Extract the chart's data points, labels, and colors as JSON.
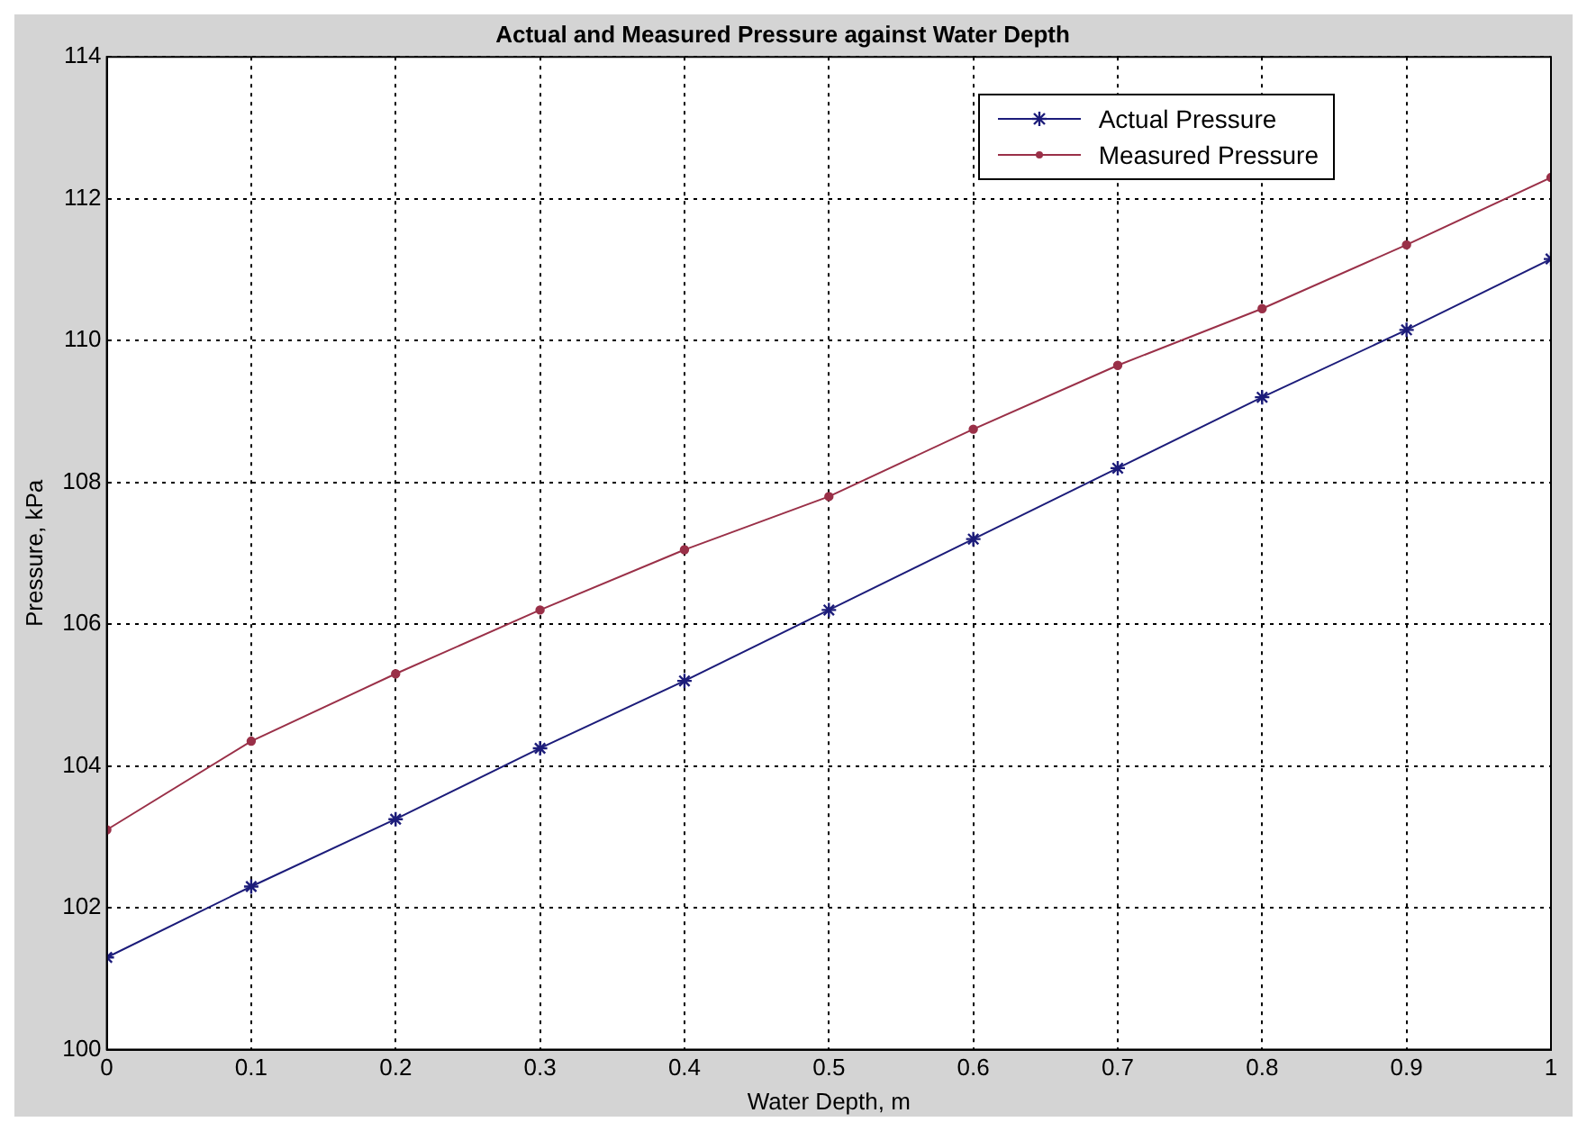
{
  "chart_data": {
    "type": "line",
    "title": "Actual and Measured Pressure against Water Depth",
    "xlabel": "Water Depth, m",
    "ylabel": "Pressure, kPa",
    "x": [
      0,
      0.1,
      0.2,
      0.3,
      0.4,
      0.5,
      0.6,
      0.7,
      0.8,
      0.9,
      1
    ],
    "series": [
      {
        "name": "Actual Pressure",
        "color": "#1c1c7a",
        "marker": "cross",
        "values": [
          101.3,
          102.3,
          103.25,
          104.25,
          105.2,
          106.2,
          107.2,
          108.2,
          109.2,
          110.15,
          111.15
        ]
      },
      {
        "name": "Measured Pressure",
        "color": "#9a3048",
        "marker": "circle",
        "values": [
          103.1,
          104.35,
          105.3,
          106.2,
          107.05,
          107.8,
          108.75,
          109.65,
          110.45,
          111.35,
          112.3
        ]
      }
    ],
    "xlim": [
      0,
      1
    ],
    "xticks": [
      0,
      0.1,
      0.2,
      0.3,
      0.4,
      0.5,
      0.6,
      0.7,
      0.8,
      0.9,
      1
    ],
    "ylim": [
      100,
      114
    ],
    "yticks": [
      100,
      102,
      104,
      106,
      108,
      110,
      112,
      114
    ],
    "grid": true,
    "line_style": "solid",
    "legend": "top right"
  }
}
